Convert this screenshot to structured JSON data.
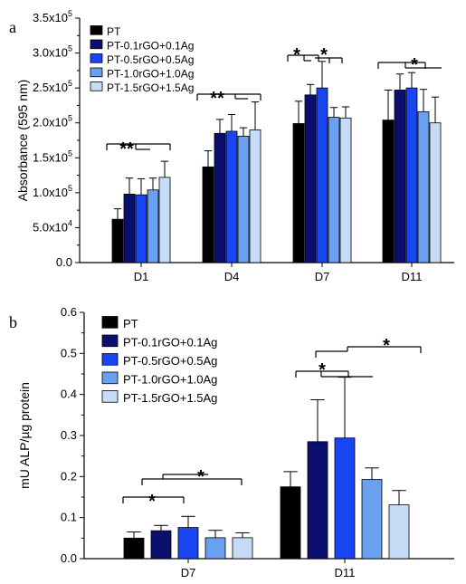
{
  "chart_data": [
    {
      "type": "bar",
      "panel_label": "a",
      "ylabel": "Absorbance (595 nm)",
      "ylim": [
        0,
        350000
      ],
      "yticks": [
        0,
        50000,
        100000,
        150000,
        200000,
        250000,
        300000,
        350000
      ],
      "ytick_labels": [
        "0.0",
        "5.0x10",
        "1.0x10",
        "1.5x10",
        "2.0x10",
        "2.5x10",
        "3.0x10",
        "3.5x10"
      ],
      "ytick_exponents": [
        "",
        "4",
        "5",
        "5",
        "5",
        "5",
        "5",
        "5"
      ],
      "categories": [
        "D1",
        "D4",
        "D7",
        "D11"
      ],
      "legend_position": "top-left",
      "series": [
        {
          "name": "PT",
          "color": "#000000",
          "values": [
            62000,
            137000,
            199000,
            204000
          ],
          "errors": [
            15000,
            23000,
            32000,
            43000
          ]
        },
        {
          "name": "PT-0.1rGO+0.1Ag",
          "color": "#0a0f6e",
          "values": [
            98000,
            185000,
            240000,
            247000
          ],
          "errors": [
            23000,
            20000,
            15000,
            23000
          ]
        },
        {
          "name": "PT-0.5rGO+0.5Ag",
          "color": "#1846f2",
          "values": [
            97000,
            188000,
            250000,
            250000
          ],
          "errors": [
            23000,
            24000,
            38000,
            22000
          ]
        },
        {
          "name": "PT-1.0rGO+1.0Ag",
          "color": "#6aa0f0",
          "values": [
            104000,
            181000,
            208000,
            216000
          ],
          "errors": [
            17000,
            12000,
            14000,
            32000
          ]
        },
        {
          "name": "PT-1.5rGO+1.5Ag",
          "color": "#c6dcf6",
          "values": [
            122000,
            190000,
            207000,
            200000
          ],
          "errors": [
            23000,
            40000,
            16000,
            37000
          ]
        }
      ],
      "annotations": [
        "**",
        "**",
        "*",
        "*",
        "*"
      ]
    },
    {
      "type": "bar",
      "panel_label": "b",
      "ylabel": "mU ALP/µg protein",
      "ylim": [
        0,
        0.6
      ],
      "yticks": [
        0.0,
        0.1,
        0.2,
        0.3,
        0.4,
        0.5,
        0.6
      ],
      "ytick_labels": [
        "0.0",
        "0.1",
        "0.2",
        "0.3",
        "0.4",
        "0.5",
        "0.6"
      ],
      "categories": [
        "D7",
        "D11"
      ],
      "legend_position": "top-left",
      "series": [
        {
          "name": "PT",
          "color": "#000000",
          "values": [
            0.05,
            0.175
          ],
          "errors": [
            0.015,
            0.037
          ]
        },
        {
          "name": "PT-0.1rGO+0.1Ag",
          "color": "#0a0f6e",
          "values": [
            0.068,
            0.285
          ],
          "errors": [
            0.013,
            0.102
          ]
        },
        {
          "name": "PT-0.5rGO+0.5Ag",
          "color": "#1846f2",
          "values": [
            0.076,
            0.294
          ],
          "errors": [
            0.027,
            0.148
          ]
        },
        {
          "name": "PT-1.0rGO+1.0Ag",
          "color": "#6aa0f0",
          "values": [
            0.051,
            0.193
          ],
          "errors": [
            0.018,
            0.028
          ]
        },
        {
          "name": "PT-1.5rGO+1.5Ag",
          "color": "#c6dcf6",
          "values": [
            0.051,
            0.131
          ],
          "errors": [
            0.012,
            0.035
          ]
        }
      ],
      "annotations": [
        "*",
        "*",
        "*",
        "*"
      ]
    }
  ]
}
